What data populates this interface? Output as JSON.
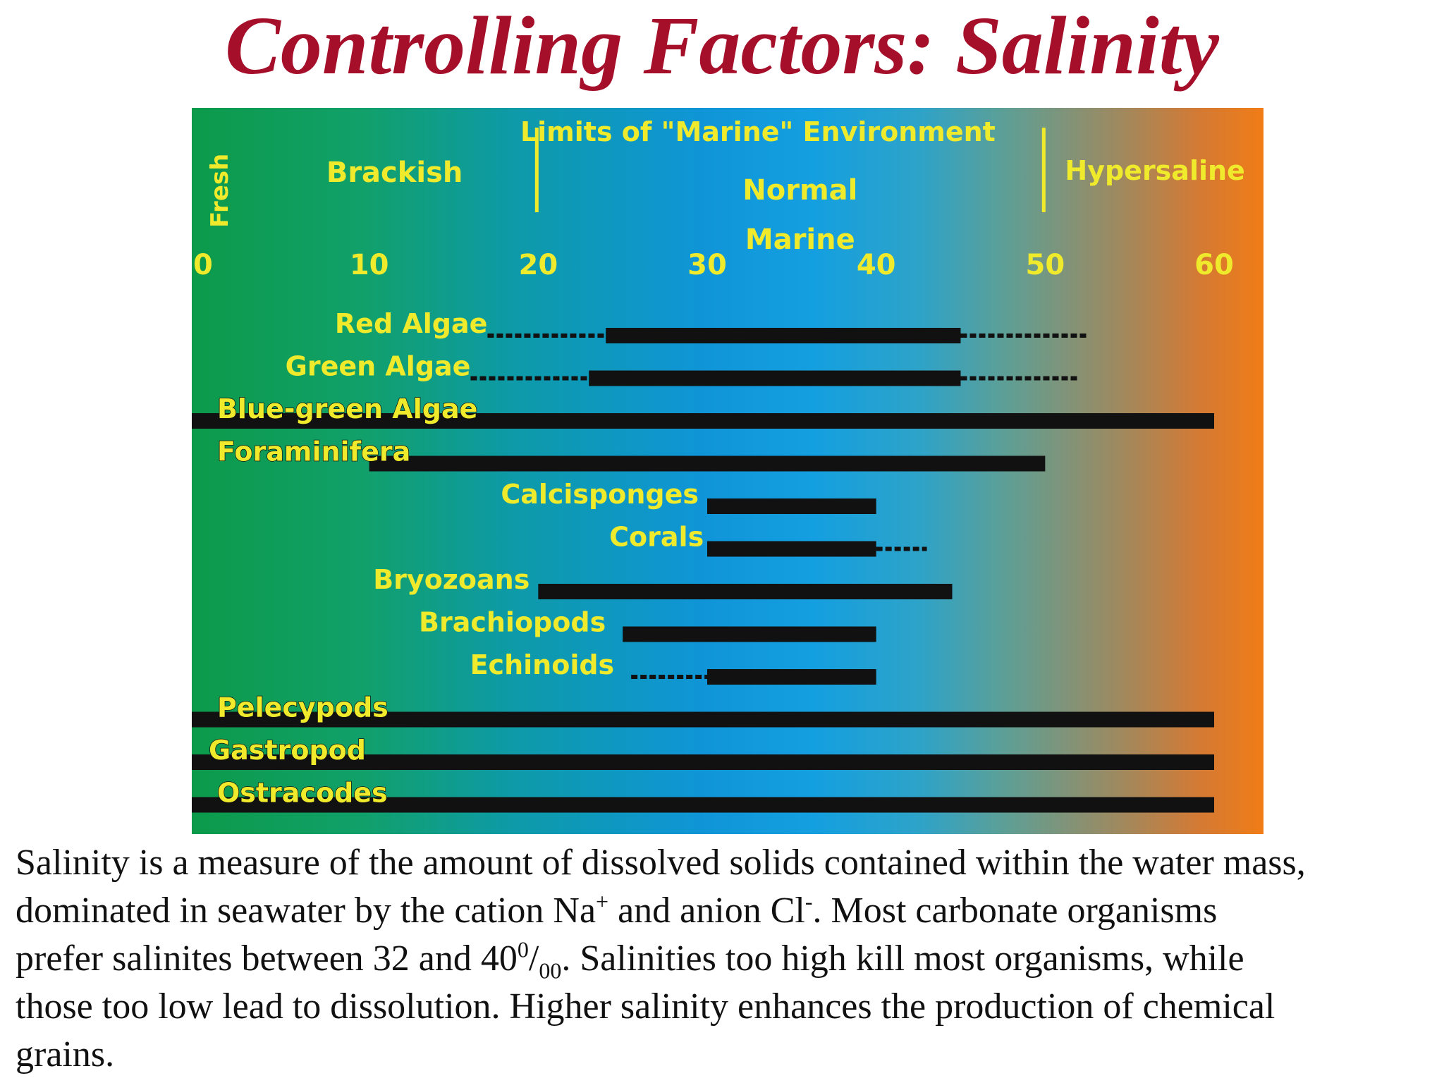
{
  "title": "Controlling Factors: Salinity",
  "chart_data": {
    "type": "bar",
    "xlim": [
      0,
      62
    ],
    "tick_labels": [
      "0",
      "10",
      "20",
      "30",
      "40",
      "50",
      "60"
    ],
    "tick_values": [
      0,
      10,
      20,
      30,
      40,
      50,
      60
    ],
    "zones": [
      {
        "label": "Fresh",
        "vertical": true,
        "x": 0.8
      },
      {
        "label": "Brackish",
        "x": 11.5
      },
      {
        "label": "Limits of \"Marine\" Environment",
        "x": 33
      },
      {
        "label": "Normal",
        "x": 35.5
      },
      {
        "label": "Marine",
        "x": 35.5
      },
      {
        "label": "Hypersaline",
        "x": 56.5
      }
    ],
    "limit_markers": [
      20,
      50
    ],
    "series": [
      {
        "name": "Red Algae",
        "solid": [
          24,
          45
        ],
        "dashed": [
          [
            17,
            24
          ],
          [
            45,
            52.5
          ]
        ],
        "label_end": 17
      },
      {
        "name": "Green Algae",
        "solid": [
          23,
          45
        ],
        "dashed": [
          [
            16,
            23
          ],
          [
            45,
            52
          ]
        ],
        "label_end": 16
      },
      {
        "name": "Blue-green Algae",
        "solid": [
          0,
          60
        ],
        "dashed": [],
        "label_start": 1
      },
      {
        "name": "Foraminifera",
        "solid": [
          10,
          50
        ],
        "dashed": [],
        "label_start": 1
      },
      {
        "name": "Calcisponges",
        "solid": [
          30,
          40
        ],
        "dashed": [],
        "label_end": 29.5
      },
      {
        "name": "Corals",
        "solid": [
          30,
          40
        ],
        "dashed": [
          [
            40,
            43
          ]
        ],
        "label_end": 29.8
      },
      {
        "name": "Bryozoans",
        "solid": [
          20,
          44.5
        ],
        "dashed": [],
        "label_end": 19.5
      },
      {
        "name": "Brachiopods",
        "solid": [
          25,
          40
        ],
        "dashed": [],
        "label_end": 24
      },
      {
        "name": "Echinoids",
        "solid": [
          30,
          40
        ],
        "dashed": [
          [
            25.5,
            30
          ]
        ],
        "label_end": 24.5
      },
      {
        "name": "Pelecypods",
        "solid": [
          0,
          60
        ],
        "dashed": [],
        "label_start": 1
      },
      {
        "name": "Gastropod",
        "solid": [
          0,
          60
        ],
        "dashed": [],
        "label_start": 0.5
      },
      {
        "name": "Ostracodes",
        "solid": [
          0,
          60
        ],
        "dashed": [],
        "label_start": 1
      }
    ]
  },
  "caption": {
    "line1": "Salinity is a measure of the amount of dissolved solids contained within the water mass,",
    "line2_a": "dominated in seawater by the cation Na",
    "line2_sup1": "+",
    "line2_b": " and anion Cl",
    "line2_sup2": "-",
    "line2_c": ".  Most carbonate organisms",
    "line3_a": "prefer salinites between 32 and 40",
    "line3_sup": "0",
    "line3_slash": "/",
    "line3_sub": "00",
    "line3_b": ".  Salinities too high kill most organisms, while",
    "line4": "those too low lead to dissolution.  Higher salinity enhances the production of chemical",
    "line5": "grains."
  }
}
